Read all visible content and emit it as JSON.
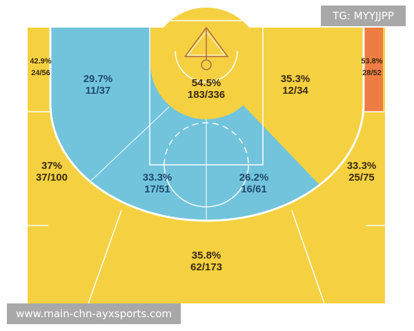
{
  "chart_data": {
    "type": "heatmap",
    "title": "",
    "colors": {
      "court": "#f5d142",
      "cold": "#72c4dc",
      "hot": "#ee7d44",
      "line": "#ffffff",
      "text_dark": "#3a2a10",
      "text_blue": "#1f4a6b"
    },
    "zones": [
      {
        "id": "left-corner",
        "pct": "42.9%",
        "shots": "24/56",
        "made": 24,
        "attempts": 56,
        "color": "#f5d142"
      },
      {
        "id": "left-wing-mid",
        "pct": "29.7%",
        "shots": "11/37",
        "made": 11,
        "attempts": 37,
        "color": "#72c4dc"
      },
      {
        "id": "restricted",
        "pct": "54.5%",
        "shots": "183/336",
        "made": 183,
        "attempts": 336,
        "color": "#f5d142"
      },
      {
        "id": "right-wing-mid",
        "pct": "35.3%",
        "shots": "12/34",
        "made": 12,
        "attempts": 34,
        "color": "#f5d142"
      },
      {
        "id": "right-corner",
        "pct": "53.8%",
        "shots": "28/52",
        "made": 28,
        "attempts": 52,
        "color": "#ee7d44"
      },
      {
        "id": "left-wing-three",
        "pct": "37%",
        "shots": "37/100",
        "made": 37,
        "attempts": 100,
        "color": "#f5d142"
      },
      {
        "id": "left-elbow-mid",
        "pct": "33.3%",
        "shots": "17/51",
        "made": 17,
        "attempts": 51,
        "color": "#72c4dc"
      },
      {
        "id": "right-elbow-mid",
        "pct": "26.2%",
        "shots": "16/61",
        "made": 16,
        "attempts": 61,
        "color": "#72c4dc"
      },
      {
        "id": "right-wing-three",
        "pct": "33.3%",
        "shots": "25/75",
        "made": 25,
        "attempts": 75,
        "color": "#f5d142"
      },
      {
        "id": "top-three",
        "pct": "35.8%",
        "shots": "62/173",
        "made": 62,
        "attempts": 173,
        "color": "#f5d142"
      }
    ]
  },
  "watermarks": {
    "top": "TG: MYYJJPP",
    "bottom": "www.main-chn-ayxsports.com"
  }
}
